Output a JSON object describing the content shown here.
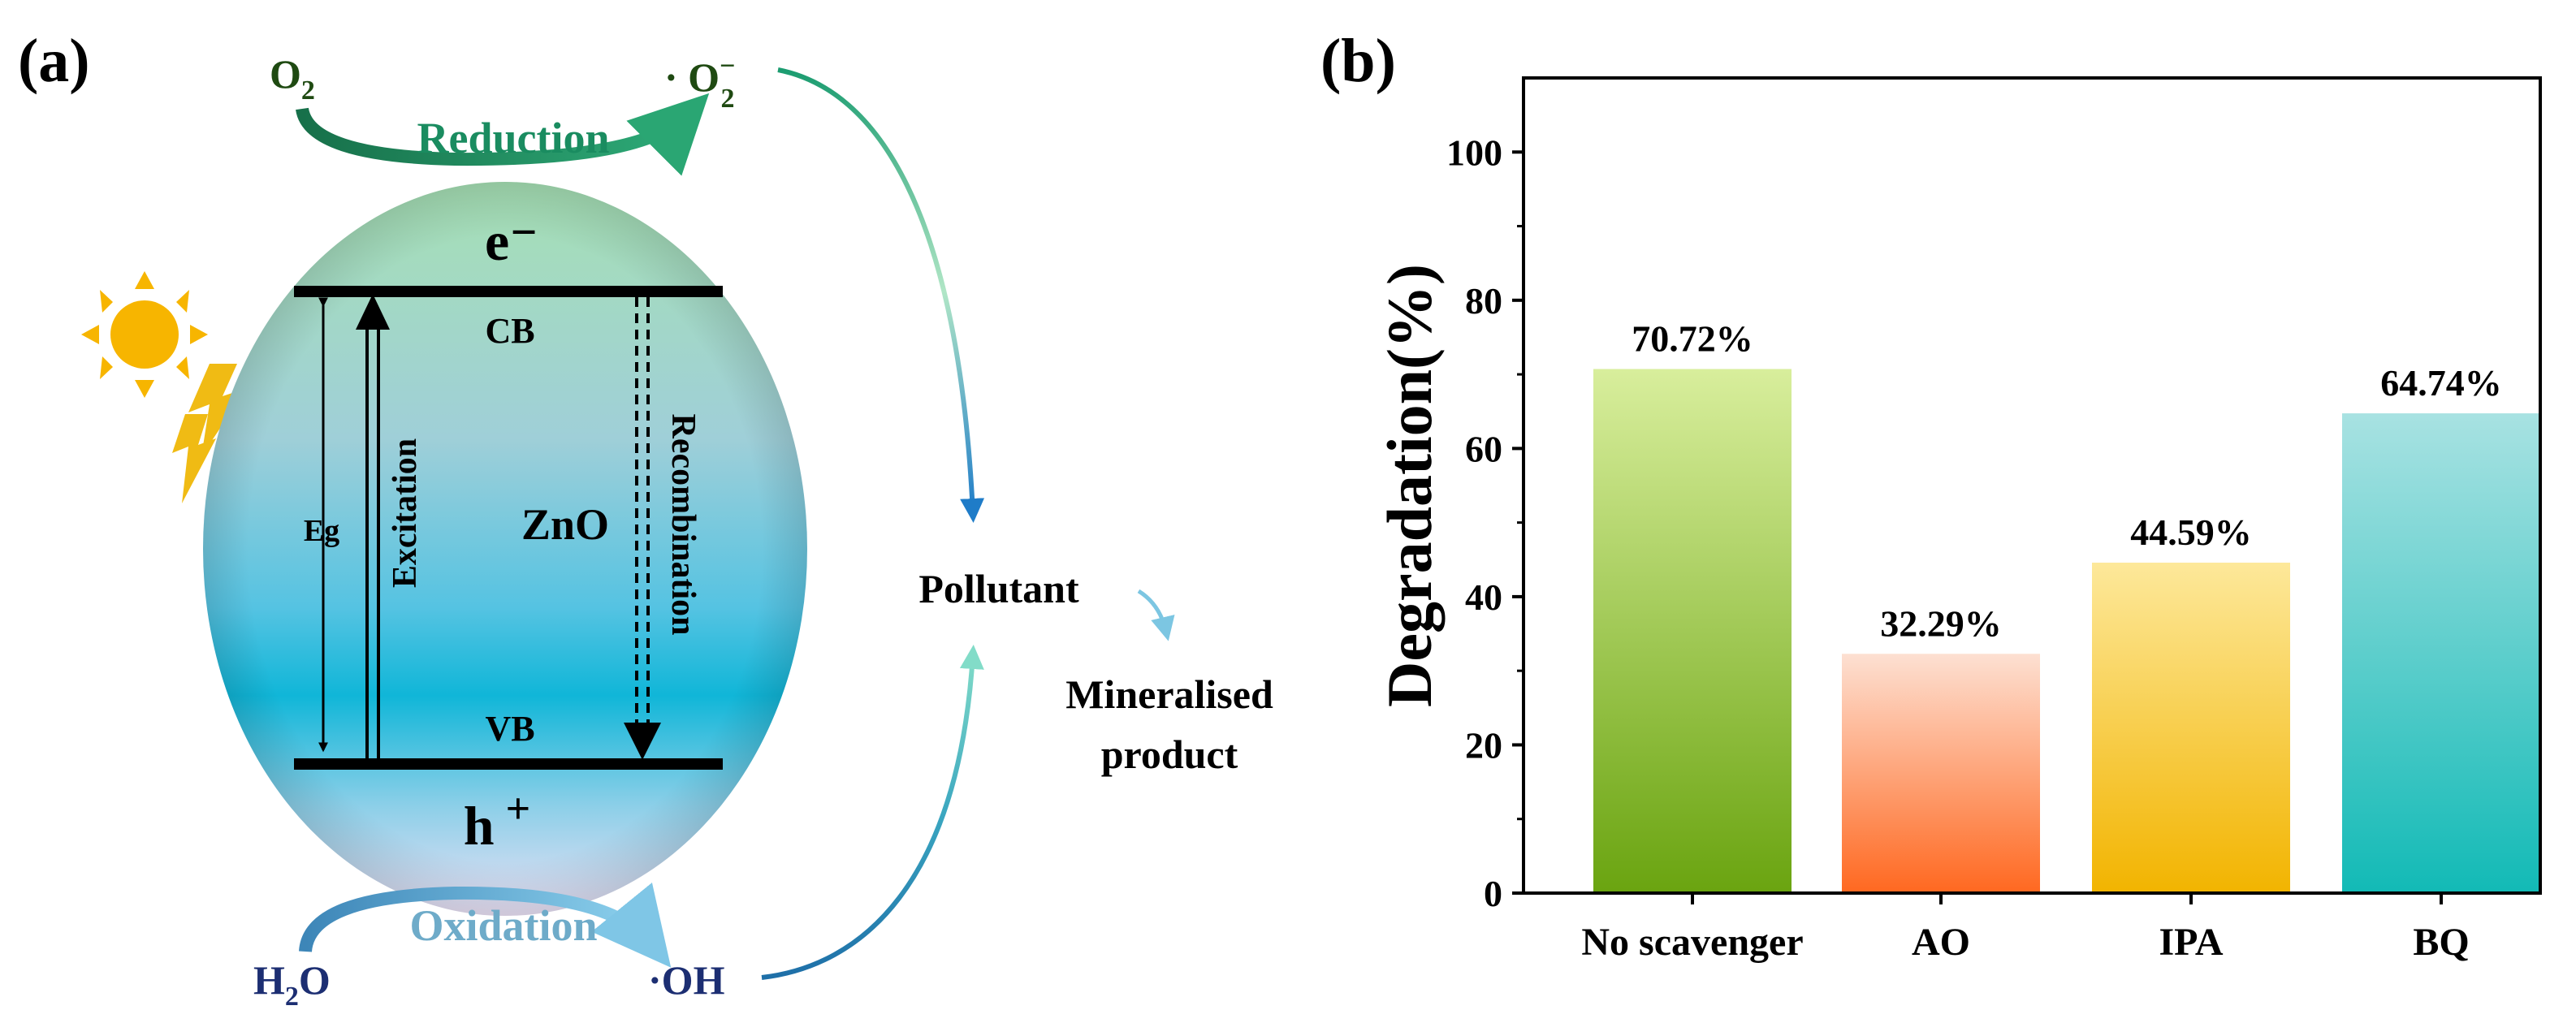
{
  "panel_a": {
    "label": "(a)",
    "material": "ZnO",
    "electron": "e⁻",
    "hole": "h",
    "hole_sup": "+",
    "cb": "CB",
    "vb": "VB",
    "eg": "Eg",
    "excitation": "Excitation",
    "recombination": "Recombination",
    "o2_base": "O",
    "o2_sub": "2",
    "superoxide_base": "· O",
    "superoxide_sub": "2",
    "superoxide_sup": "−",
    "reduction": "Reduction",
    "oxidation": "Oxidation",
    "h2o_h": "H",
    "h2o_sub": "2",
    "h2o_o": "O",
    "hydroxyl": "·OH",
    "pollutant": "Pollutant",
    "product_line1": "Mineralised",
    "product_line2": "product",
    "colors": {
      "ellipse_top": "#a6e0b4",
      "ellipse_mid": "#10b6d8",
      "ellipse_bottom": "#ece2f6",
      "reduction_text": "#1a8c60",
      "oxidation_text": "#6eabc9",
      "dark_green": "#1f4a12",
      "navy": "#1c2e72",
      "sun": "#f7b500",
      "bolt": "#f0bb14"
    }
  },
  "panel_b": {
    "label": "(b)"
  },
  "chart_data": {
    "type": "bar",
    "categories": [
      "No scavenger",
      "AO",
      "IPA",
      "BQ"
    ],
    "values": [
      70.72,
      32.29,
      44.59,
      64.74
    ],
    "value_labels": [
      "70.72%",
      "32.29%",
      "44.59%",
      "64.74%"
    ],
    "ylabel": "Degradation(%)",
    "xlabel": "",
    "ylim": [
      0,
      110
    ],
    "yticks": [
      0,
      20,
      40,
      60,
      80,
      100
    ],
    "ytick_labels": [
      "0",
      "20",
      "40",
      "60",
      "80",
      "100"
    ],
    "grid": false,
    "colors": [
      {
        "top": "#d8ee9c",
        "bottom": "#6aa410"
      },
      {
        "top": "#fde0d2",
        "bottom": "#ff6820"
      },
      {
        "top": "#fde89a",
        "bottom": "#f2b400"
      },
      {
        "top": "#a8e2e2",
        "bottom": "#12bab6"
      }
    ]
  }
}
